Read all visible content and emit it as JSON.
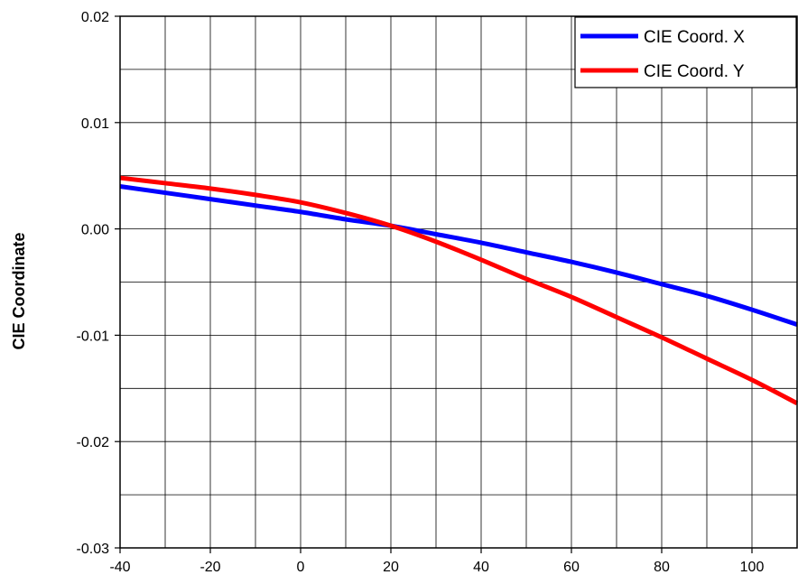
{
  "chart_data": {
    "type": "line",
    "title": "",
    "xlabel": "",
    "ylabel": "CIE Coordinate",
    "xlim": [
      -40,
      110
    ],
    "ylim": [
      -0.03,
      0.02
    ],
    "grid": true,
    "x_ticks": [
      -40,
      -20,
      0,
      20,
      40,
      60,
      80,
      100
    ],
    "x_tick_labels": [
      "-40",
      "-20",
      "0",
      "20",
      "40",
      "60",
      "80",
      "100"
    ],
    "y_ticks": [
      -0.03,
      -0.02,
      -0.01,
      0.0,
      0.01,
      0.02
    ],
    "y_tick_labels": [
      "-0.03",
      "-0.02",
      "-0.01",
      "0.00",
      "0.01",
      "0.02"
    ],
    "legend_position": "top-right",
    "series": [
      {
        "name": "CIE Coord. X",
        "color": "#0000ff",
        "x": [
          -40,
          -30,
          -20,
          -10,
          0,
          10,
          20,
          30,
          40,
          50,
          60,
          70,
          80,
          90,
          100,
          110
        ],
        "y": [
          0.004,
          0.0034,
          0.0028,
          0.0022,
          0.0016,
          0.0009,
          0.0003,
          -0.0005,
          -0.0013,
          -0.0022,
          -0.0031,
          -0.0041,
          -0.0052,
          -0.0063,
          -0.0076,
          -0.009
        ]
      },
      {
        "name": "CIE Coord. Y",
        "color": "#ff0000",
        "x": [
          -40,
          -30,
          -20,
          -10,
          0,
          10,
          20,
          30,
          40,
          50,
          60,
          70,
          80,
          90,
          100,
          110
        ],
        "y": [
          0.0048,
          0.0043,
          0.0038,
          0.0032,
          0.0025,
          0.0015,
          0.0003,
          -0.0012,
          -0.0029,
          -0.0047,
          -0.0064,
          -0.0083,
          -0.0102,
          -0.0122,
          -0.0142,
          -0.0164
        ]
      }
    ]
  }
}
